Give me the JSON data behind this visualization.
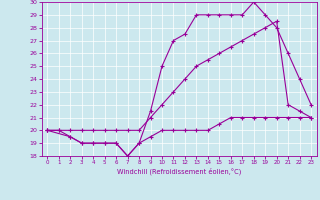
{
  "xlabel": "Windchill (Refroidissement éolien,°C)",
  "background_color": "#cce8ee",
  "line_color": "#990099",
  "xlim": [
    -0.5,
    23.5
  ],
  "ylim": [
    18,
    30
  ],
  "xticks": [
    0,
    1,
    2,
    3,
    4,
    5,
    6,
    7,
    8,
    9,
    10,
    11,
    12,
    13,
    14,
    15,
    16,
    17,
    18,
    19,
    20,
    21,
    22,
    23
  ],
  "yticks": [
    18,
    19,
    20,
    21,
    22,
    23,
    24,
    25,
    26,
    27,
    28,
    29,
    30
  ],
  "series1_x": [
    0,
    1,
    2,
    3,
    4,
    5,
    6,
    7,
    8,
    9,
    10,
    11,
    12,
    13,
    14,
    15,
    16,
    17,
    18,
    19,
    20,
    21,
    22,
    23
  ],
  "series1_y": [
    20,
    20,
    19.5,
    19,
    19,
    19,
    19,
    18,
    19,
    19.5,
    20,
    20,
    20,
    20,
    20,
    20.5,
    21,
    21,
    21,
    21,
    21,
    21,
    21,
    21
  ],
  "series2_x": [
    0,
    1,
    2,
    3,
    4,
    5,
    6,
    7,
    8,
    9,
    10,
    11,
    12,
    13,
    14,
    15,
    16,
    17,
    18,
    19,
    20,
    21,
    22,
    23
  ],
  "series2_y": [
    20,
    20,
    20,
    20,
    20,
    20,
    20,
    20,
    20,
    21,
    22,
    23,
    24,
    25,
    25.5,
    26,
    26.5,
    27,
    27.5,
    28,
    28.5,
    22,
    21.5,
    21
  ],
  "series3_x": [
    0,
    2,
    3,
    4,
    5,
    6,
    7,
    8,
    9,
    10,
    11,
    12,
    13,
    14,
    15,
    16,
    17,
    18,
    19,
    20,
    21,
    22,
    23
  ],
  "series3_y": [
    20,
    19.5,
    19,
    19,
    19,
    19,
    18,
    19,
    21.5,
    25,
    27,
    27.5,
    29,
    29,
    29,
    29,
    29,
    30,
    29,
    28,
    26,
    24,
    22
  ]
}
